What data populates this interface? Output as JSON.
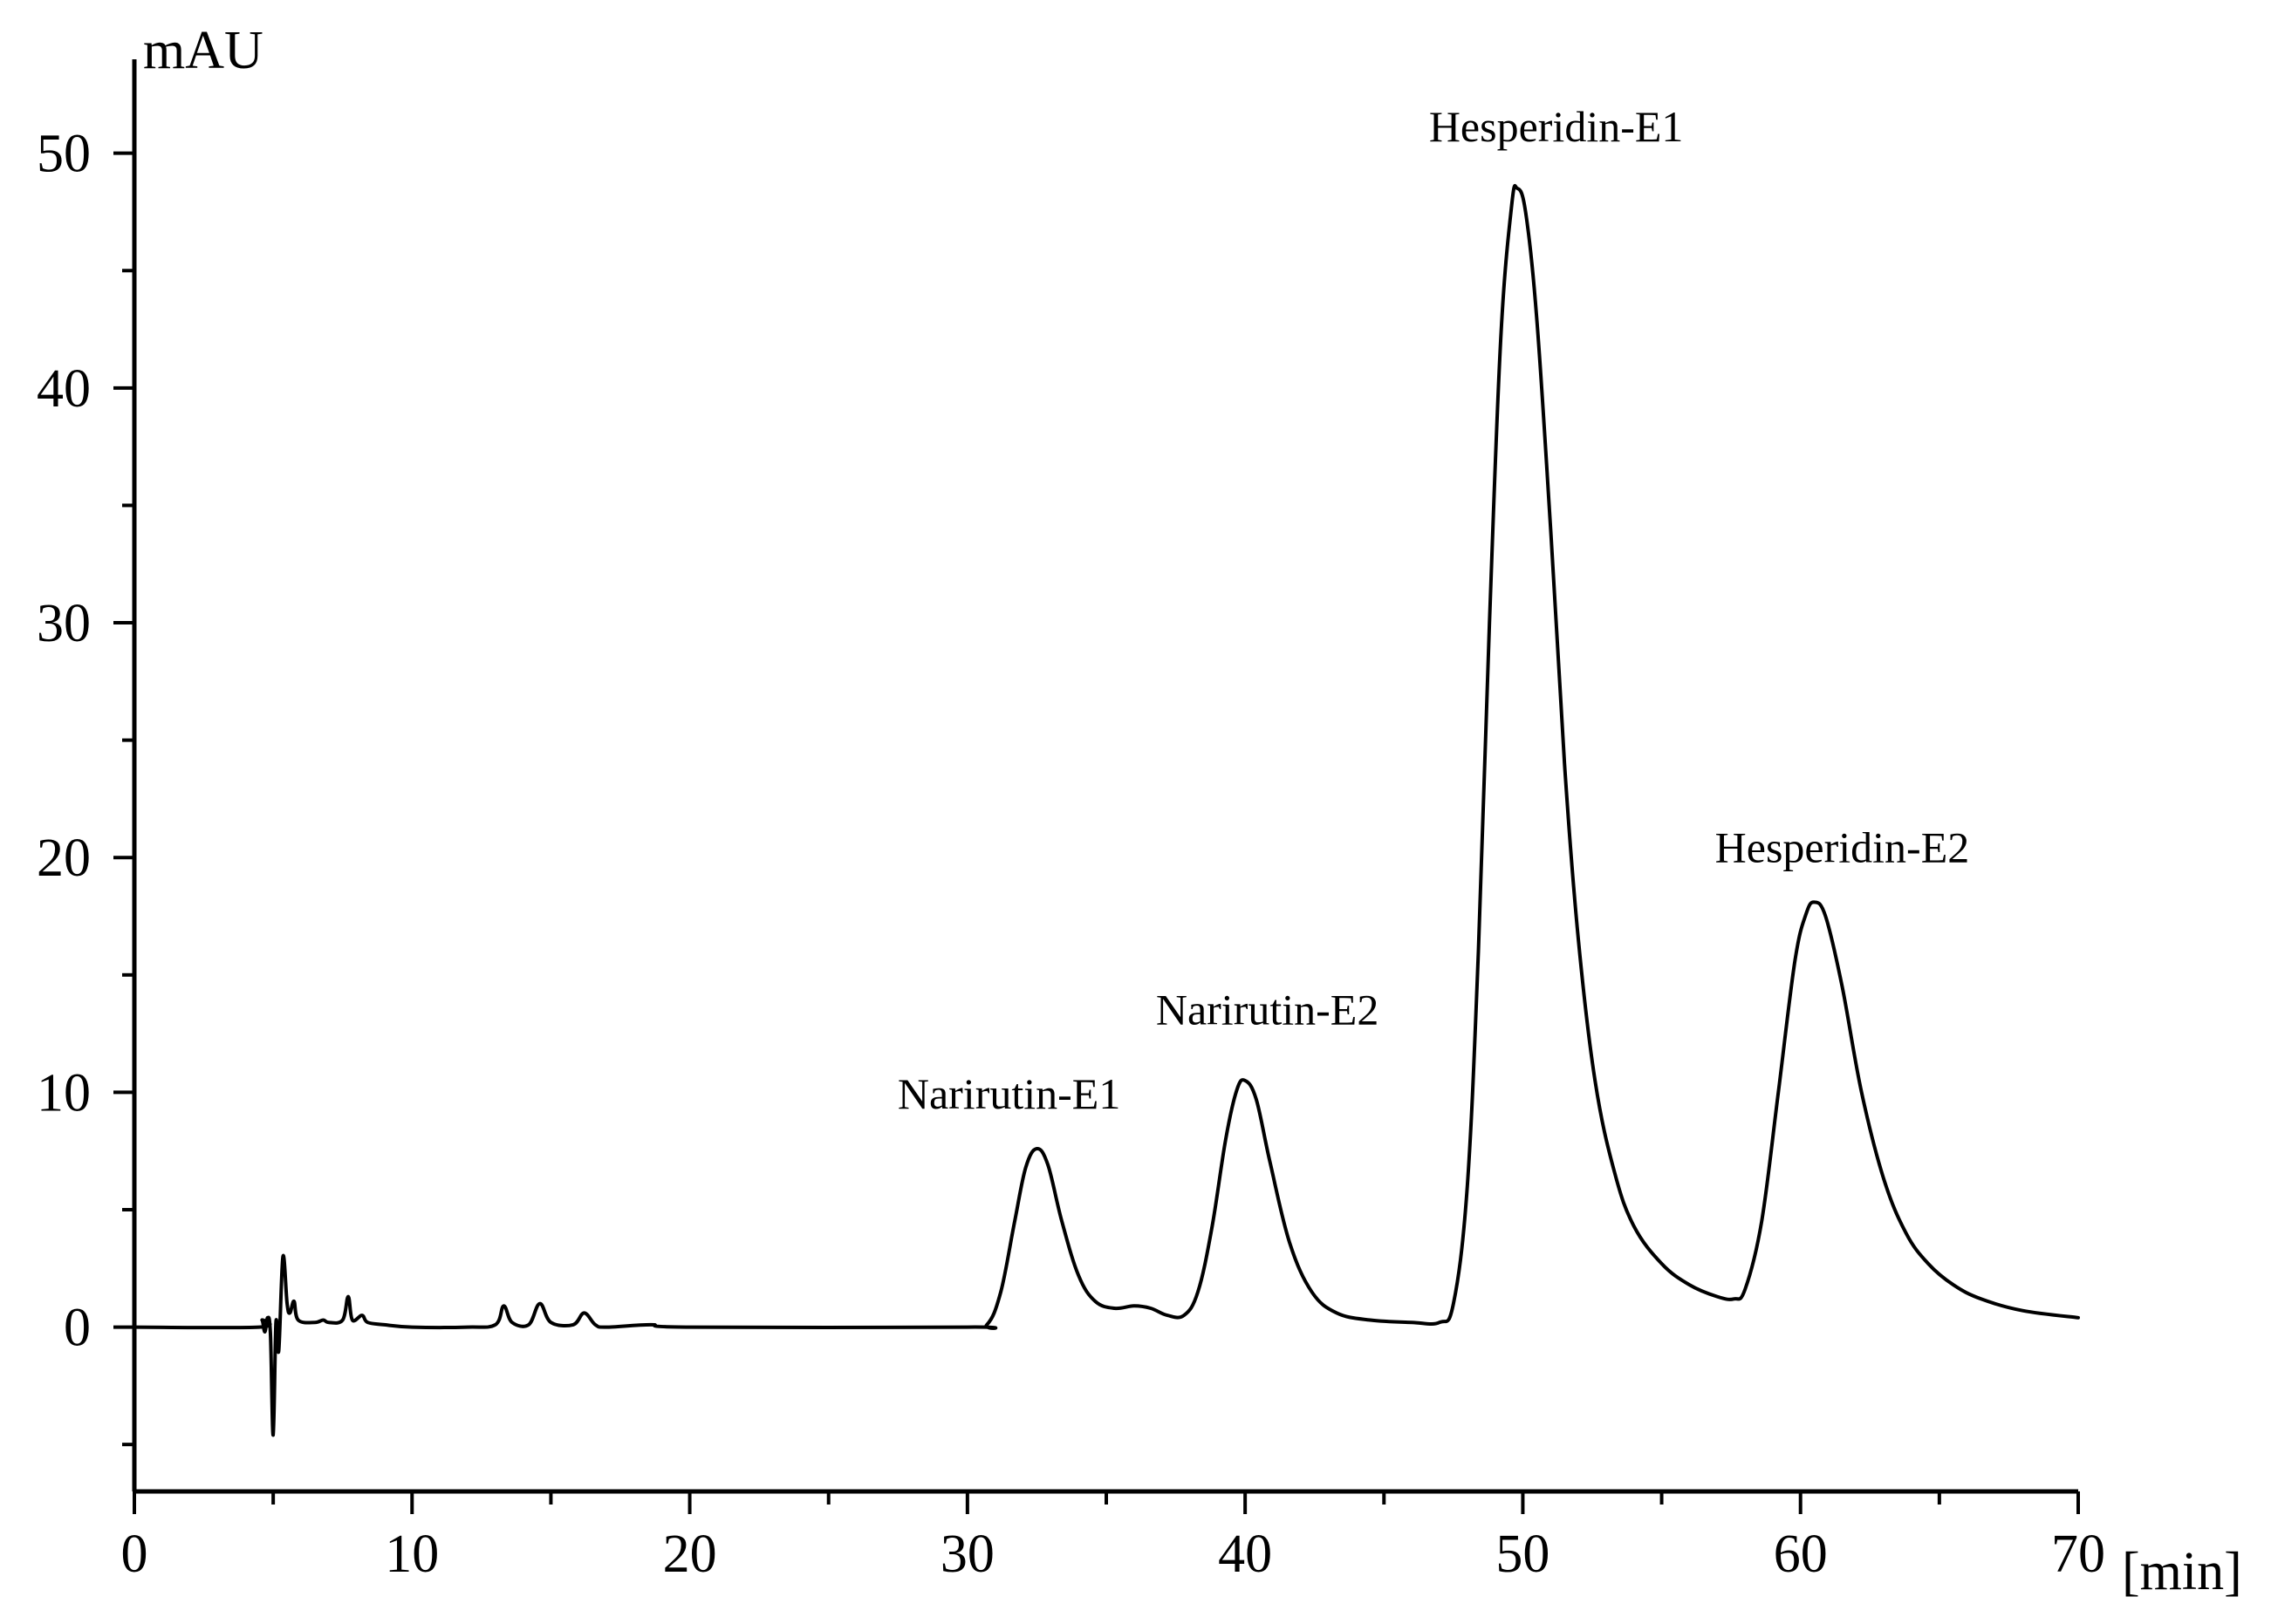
{
  "chart_data": {
    "type": "line",
    "ylabel": "mAU",
    "xlabel": "[min]",
    "xlim": [
      0,
      70
    ],
    "ylim": [
      -7,
      54
    ],
    "grid": false,
    "x_ticks": [
      0,
      10,
      20,
      30,
      40,
      50,
      60,
      70
    ],
    "x_tick_labels": [
      "0",
      "10",
      "20",
      "30",
      "40",
      "50",
      "60",
      "70"
    ],
    "y_ticks": [
      0,
      10,
      20,
      30,
      40,
      50
    ],
    "y_tick_labels": [
      "0",
      "10",
      "20",
      "30",
      "40",
      "50"
    ],
    "series": [
      {
        "color": "#000000",
        "points": [
          [
            0,
            0.0
          ],
          [
            4.5,
            0.0
          ],
          [
            4.6,
            0.3
          ],
          [
            4.7,
            -0.2
          ],
          [
            4.8,
            0.4
          ],
          [
            4.9,
            -0.3
          ],
          [
            5.0,
            -4.6
          ],
          [
            5.1,
            0.2
          ],
          [
            5.2,
            -1.0
          ],
          [
            5.35,
            3.0
          ],
          [
            5.5,
            1.0
          ],
          [
            5.6,
            0.6
          ],
          [
            5.75,
            1.1
          ],
          [
            5.9,
            0.3
          ],
          [
            6.5,
            0.2
          ],
          [
            6.8,
            0.3
          ],
          [
            7.0,
            0.2
          ],
          [
            7.5,
            0.3
          ],
          [
            7.7,
            1.3
          ],
          [
            7.85,
            0.3
          ],
          [
            8.2,
            0.5
          ],
          [
            8.4,
            0.2
          ],
          [
            9.0,
            0.1
          ],
          [
            10.0,
            0.0
          ],
          [
            12.0,
            0.0
          ],
          [
            13.0,
            0.1
          ],
          [
            13.3,
            0.9
          ],
          [
            13.6,
            0.2
          ],
          [
            14.2,
            0.1
          ],
          [
            14.6,
            1.0
          ],
          [
            15.0,
            0.2
          ],
          [
            15.8,
            0.1
          ],
          [
            16.2,
            0.6
          ],
          [
            16.6,
            0.1
          ],
          [
            17.0,
            0.0
          ],
          [
            18.6,
            0.1
          ],
          [
            20.0,
            0.0
          ],
          [
            30.0,
            0.0
          ],
          [
            30.7,
            0.1
          ],
          [
            31.2,
            1.5
          ],
          [
            31.7,
            4.5
          ],
          [
            32.1,
            6.8
          ],
          [
            32.5,
            7.6
          ],
          [
            32.9,
            6.9
          ],
          [
            33.4,
            4.5
          ],
          [
            34.0,
            2.2
          ],
          [
            34.6,
            1.1
          ],
          [
            35.3,
            0.8
          ],
          [
            36.0,
            0.9
          ],
          [
            36.6,
            0.8
          ],
          [
            37.2,
            0.5
          ],
          [
            37.8,
            0.5
          ],
          [
            38.3,
            1.5
          ],
          [
            38.8,
            4.2
          ],
          [
            39.3,
            8.0
          ],
          [
            39.7,
            10.1
          ],
          [
            40.0,
            10.5
          ],
          [
            40.4,
            9.7
          ],
          [
            40.9,
            7.0
          ],
          [
            41.6,
            3.6
          ],
          [
            42.4,
            1.5
          ],
          [
            43.3,
            0.6
          ],
          [
            44.5,
            0.3
          ],
          [
            46.0,
            0.2
          ],
          [
            47.0,
            0.2
          ],
          [
            47.5,
            1.0
          ],
          [
            48.0,
            6.0
          ],
          [
            48.4,
            16.0
          ],
          [
            48.8,
            30.0
          ],
          [
            49.2,
            42.0
          ],
          [
            49.6,
            47.8
          ],
          [
            49.8,
            48.5
          ],
          [
            50.1,
            47.5
          ],
          [
            50.5,
            43.0
          ],
          [
            51.0,
            34.0
          ],
          [
            51.5,
            24.0
          ],
          [
            52.0,
            16.5
          ],
          [
            52.6,
            10.5
          ],
          [
            53.3,
            6.6
          ],
          [
            54.0,
            4.3
          ],
          [
            55.0,
            2.7
          ],
          [
            56.0,
            1.8
          ],
          [
            57.0,
            1.3
          ],
          [
            57.6,
            1.2
          ],
          [
            58.0,
            1.6
          ],
          [
            58.6,
            4.5
          ],
          [
            59.2,
            10.0
          ],
          [
            59.8,
            15.6
          ],
          [
            60.2,
            17.6
          ],
          [
            60.5,
            18.1
          ],
          [
            60.9,
            17.5
          ],
          [
            61.5,
            14.5
          ],
          [
            62.2,
            10.0
          ],
          [
            63.0,
            6.3
          ],
          [
            63.8,
            4.0
          ],
          [
            64.6,
            2.7
          ],
          [
            65.5,
            1.8
          ],
          [
            66.5,
            1.2
          ],
          [
            68.0,
            0.7
          ],
          [
            70.0,
            0.4
          ]
        ]
      }
    ],
    "annotations": [
      {
        "text": "Narirutin-E1",
        "x": 31.5,
        "y": 9.3
      },
      {
        "text": "Narirutin-E2",
        "x": 40.8,
        "y": 12.9
      },
      {
        "text": "Hesperidin-E1",
        "x": 51.2,
        "y": 50.5
      },
      {
        "text": "Hesperidin-E2",
        "x": 61.5,
        "y": 19.8
      }
    ]
  }
}
